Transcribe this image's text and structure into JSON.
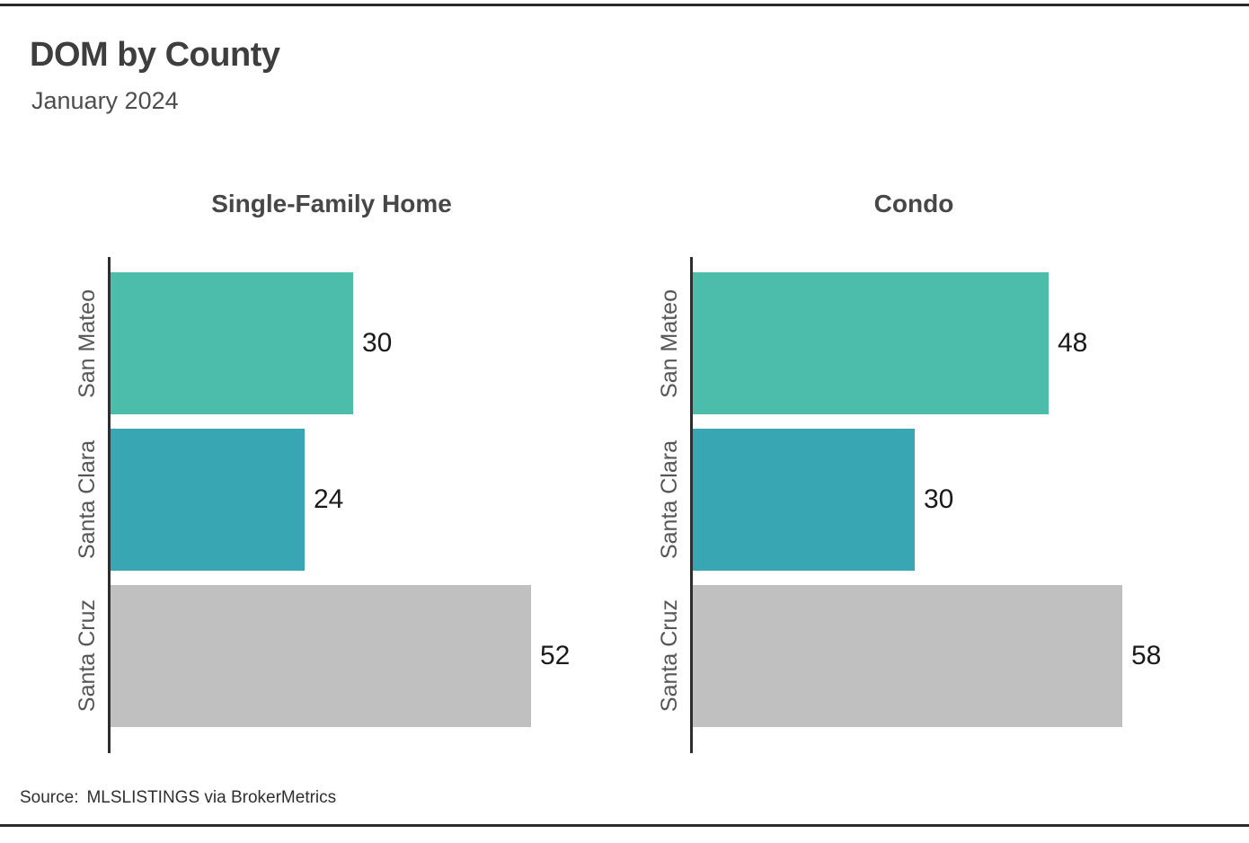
{
  "header": {
    "title": "DOM by County",
    "subtitle": "January 2024"
  },
  "chart_data": [
    {
      "type": "bar",
      "orientation": "horizontal",
      "title": "Single-Family Home",
      "categories": [
        "San Mateo",
        "Santa Clara",
        "Santa Cruz"
      ],
      "values": [
        30,
        24,
        52
      ],
      "bar_colors": [
        "#4cbcab",
        "#39a6b4",
        "#c0c0c0"
      ],
      "grid": false,
      "legend": "none",
      "value_labels_shown": true
    },
    {
      "type": "bar",
      "orientation": "horizontal",
      "title": "Condo",
      "categories": [
        "San Mateo",
        "Santa Clara",
        "Santa Cruz"
      ],
      "values": [
        48,
        30,
        58
      ],
      "bar_colors": [
        "#4cbcab",
        "#39a6b4",
        "#c0c0c0"
      ],
      "grid": false,
      "legend": "none",
      "value_labels_shown": true
    }
  ],
  "footer": {
    "source_label": "Source:",
    "source_text": "MLSLISTINGS via BrokerMetrics"
  },
  "colors": {
    "teal_green": "#4cbcab",
    "teal_blue": "#39a6b4",
    "gray": "#c0c0c0",
    "axis": "#2e2e2e",
    "rule": "#2b2b2b",
    "title_text": "#3e3e3e"
  }
}
